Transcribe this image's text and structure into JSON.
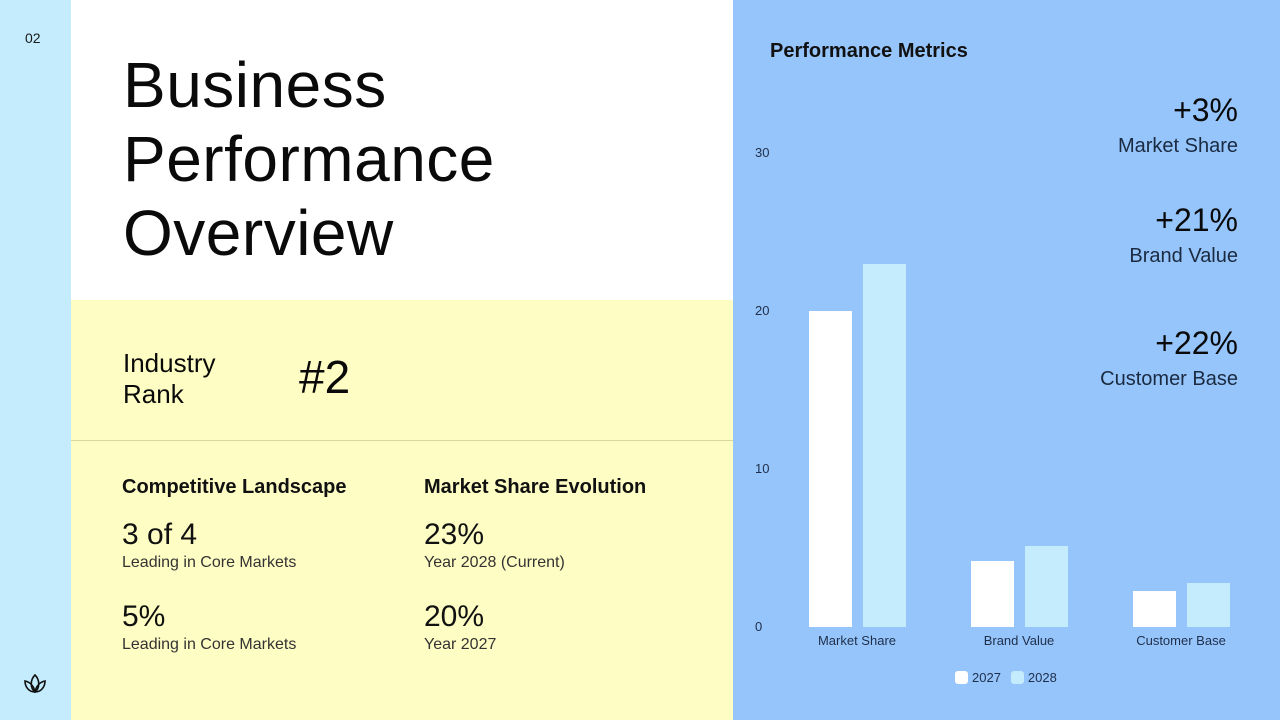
{
  "page": {
    "number": "02",
    "logo_icon": "lotus-icon"
  },
  "title": {
    "line1": "Business",
    "line2": "Performance",
    "line3": "Overview"
  },
  "rank": {
    "label_line1": "Industry",
    "label_line2": "Rank",
    "value": "#2"
  },
  "competitive": {
    "heading": "Competitive Landscape",
    "stats": [
      {
        "value": "3 of 4",
        "label": "Leading in Core Markets"
      },
      {
        "value": "5%",
        "label": "Leading in Core Markets"
      }
    ]
  },
  "evolution": {
    "heading": "Market Share Evolution",
    "stats": [
      {
        "value": "23%",
        "label": "Year 2028 (Current)"
      },
      {
        "value": "20%",
        "label": "Year 2027"
      }
    ]
  },
  "metrics_panel": {
    "title": "Performance Metrics",
    "highlights": [
      {
        "delta": "+3%",
        "name": "Market Share"
      },
      {
        "delta": "+21%",
        "name": "Brand Value"
      },
      {
        "delta": "+22%",
        "name": "Customer Base"
      }
    ]
  },
  "colors": {
    "left_strip": "#c4ecfd",
    "yellow_panel": "#fefdc4",
    "right_panel": "#96c5fb",
    "bar_2027": "#ffffff",
    "bar_2028": "#c4ecfd"
  },
  "chart_data": {
    "type": "bar",
    "title": "Performance Metrics",
    "categories": [
      "Market Share",
      "Brand Value",
      "Customer Base"
    ],
    "series": [
      {
        "name": "2027",
        "values": [
          20,
          4.2,
          2.3
        ]
      },
      {
        "name": "2028",
        "values": [
          23,
          5.1,
          2.8
        ]
      }
    ],
    "yticks": [
      0,
      10,
      20,
      30
    ],
    "ylim": [
      0,
      30
    ],
    "xlabel": "",
    "ylabel": "",
    "grid": false,
    "legend": {
      "position": "bottom",
      "entries": [
        "2027",
        "2028"
      ]
    },
    "annotations": [
      "+3% Market Share",
      "+21% Brand Value",
      "+22% Customer Base"
    ]
  }
}
